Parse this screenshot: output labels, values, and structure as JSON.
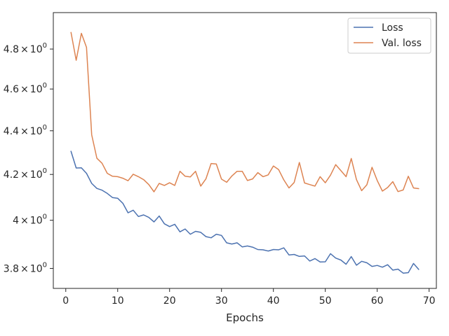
{
  "chart_data": {
    "type": "line",
    "title": "",
    "xlabel": "Epochs",
    "ylabel": "",
    "xlim": [
      -2.4,
      71.4
    ],
    "ylim": [
      3.72,
      4.99
    ],
    "yscale": "log",
    "grid": false,
    "legend_position": "top-right",
    "x_ticks": [
      {
        "value": 0,
        "label": "0"
      },
      {
        "value": 10,
        "label": "10"
      },
      {
        "value": 20,
        "label": "20"
      },
      {
        "value": 30,
        "label": "30"
      },
      {
        "value": 40,
        "label": "40"
      },
      {
        "value": 50,
        "label": "50"
      },
      {
        "value": 60,
        "label": "60"
      },
      {
        "value": 70,
        "label": "70"
      }
    ],
    "y_ticks": [
      {
        "value": 3.8,
        "mantissa": "3.8",
        "times": "×",
        "base": "10",
        "exp": "0"
      },
      {
        "value": 4.0,
        "mantissa": "4",
        "times": "×",
        "base": "10",
        "exp": "0"
      },
      {
        "value": 4.2,
        "mantissa": "4.2",
        "times": "×",
        "base": "10",
        "exp": "0"
      },
      {
        "value": 4.4,
        "mantissa": "4.4",
        "times": "×",
        "base": "10",
        "exp": "0"
      },
      {
        "value": 4.6,
        "mantissa": "4.6",
        "times": "×",
        "base": "10",
        "exp": "0"
      },
      {
        "value": 4.8,
        "mantissa": "4.8",
        "times": "×",
        "base": "10",
        "exp": "0"
      }
    ],
    "x": [
      1,
      2,
      3,
      4,
      5,
      6,
      7,
      8,
      9,
      10,
      11,
      12,
      13,
      14,
      15,
      16,
      17,
      18,
      19,
      20,
      21,
      22,
      23,
      24,
      25,
      26,
      27,
      28,
      29,
      30,
      31,
      32,
      33,
      34,
      35,
      36,
      37,
      38,
      39,
      40,
      41,
      42,
      43,
      44,
      45,
      46,
      47,
      48,
      49,
      50,
      51,
      52,
      53,
      54,
      55,
      56,
      57,
      58,
      59,
      60,
      61,
      62,
      63,
      64,
      65,
      66,
      67,
      68
    ],
    "series": [
      {
        "name": "Loss",
        "color": "#4c72b0",
        "values": [
          4.305,
          4.229,
          4.23,
          4.205,
          4.16,
          4.138,
          4.13,
          4.116,
          4.098,
          4.095,
          4.073,
          4.032,
          4.043,
          4.016,
          4.023,
          4.012,
          3.993,
          4.018,
          3.985,
          3.973,
          3.983,
          3.951,
          3.963,
          3.941,
          3.953,
          3.949,
          3.931,
          3.926,
          3.941,
          3.936,
          3.905,
          3.9,
          3.905,
          3.888,
          3.892,
          3.887,
          3.877,
          3.876,
          3.871,
          3.877,
          3.876,
          3.884,
          3.855,
          3.857,
          3.849,
          3.851,
          3.83,
          3.84,
          3.826,
          3.827,
          3.86,
          3.842,
          3.834,
          3.817,
          3.848,
          3.813,
          3.829,
          3.823,
          3.808,
          3.812,
          3.805,
          3.815,
          3.793,
          3.797,
          3.781,
          3.783,
          3.82,
          3.796
        ]
      },
      {
        "name": "Val. loss",
        "color": "#dd8452",
        "values": [
          4.886,
          4.743,
          4.881,
          4.809,
          4.381,
          4.273,
          4.25,
          4.205,
          4.192,
          4.19,
          4.183,
          4.172,
          4.201,
          4.19,
          4.177,
          4.155,
          4.123,
          4.16,
          4.151,
          4.163,
          4.151,
          4.214,
          4.192,
          4.189,
          4.214,
          4.148,
          4.18,
          4.249,
          4.247,
          4.179,
          4.165,
          4.193,
          4.214,
          4.214,
          4.173,
          4.18,
          4.208,
          4.19,
          4.198,
          4.238,
          4.222,
          4.176,
          4.14,
          4.164,
          4.254,
          4.162,
          4.155,
          4.148,
          4.19,
          4.163,
          4.197,
          4.244,
          4.217,
          4.19,
          4.272,
          4.177,
          4.128,
          4.154,
          4.232,
          4.173,
          4.126,
          4.142,
          4.168,
          4.124,
          4.131,
          4.192,
          4.14,
          4.137
        ]
      }
    ]
  }
}
